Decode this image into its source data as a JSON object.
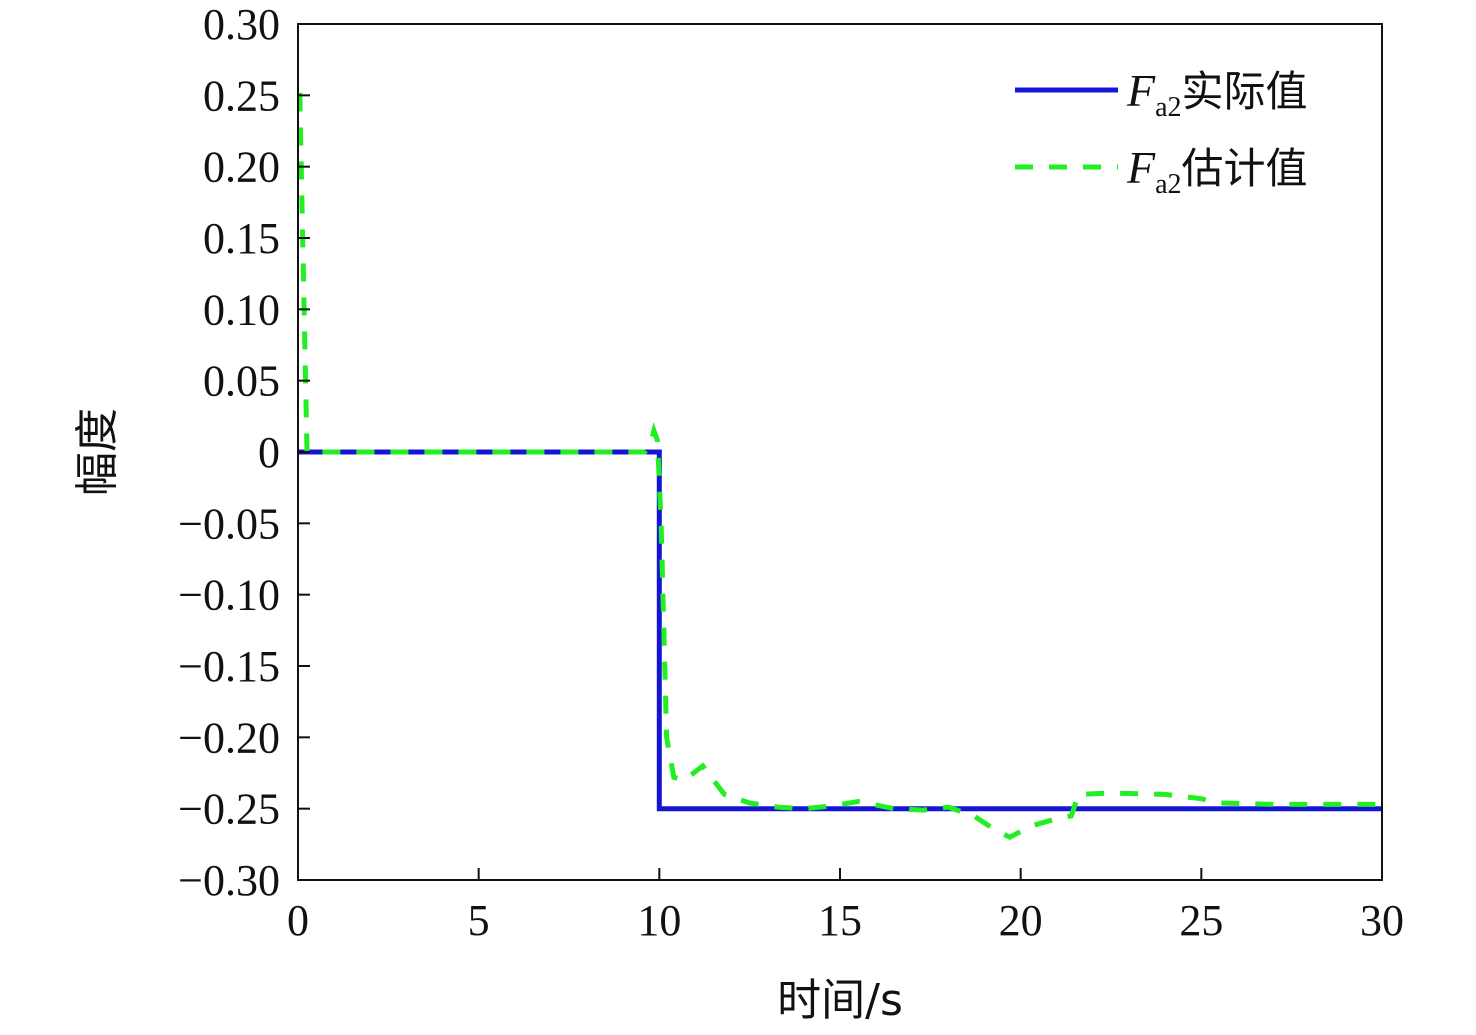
{
  "chart_data": {
    "type": "line",
    "title": "",
    "xlabel": "时间/s",
    "ylabel": "幅度",
    "xlim": [
      0,
      30
    ],
    "ylim": [
      -0.3,
      0.3
    ],
    "x_ticks": [
      "0",
      "5",
      "10",
      "15",
      "20",
      "25",
      "30"
    ],
    "y_ticks": [
      "0.30",
      "0.25",
      "0.20",
      "0.15",
      "0.10",
      "0.05",
      "0",
      "−0.05",
      "−0.10",
      "−0.15",
      "−0.20",
      "−0.25",
      "−0.30"
    ],
    "grid": false,
    "legend_position": "top-right",
    "series": [
      {
        "name": "Fa2实际值",
        "legend_symbol": "F",
        "legend_subscript": "a2",
        "legend_suffix": "实际值",
        "color": "#1515d6",
        "style": "solid",
        "x": [
          0,
          10,
          10,
          30
        ],
        "y": [
          0,
          0,
          -0.25,
          -0.25
        ]
      },
      {
        "name": "Fa2估计值",
        "legend_symbol": "F",
        "legend_subscript": "a2",
        "legend_suffix": "估计值",
        "color": "#22ee22",
        "style": "dashed",
        "x": [
          0,
          0.05,
          0.25,
          9.6,
          9.75,
          9.85,
          9.95,
          10.05,
          10.2,
          10.4,
          10.7,
          11.2,
          11.8,
          12.5,
          13.3,
          14,
          14.8,
          15.5,
          16.5,
          17.3,
          18,
          18.7,
          19.3,
          19.7,
          20.3,
          21,
          21.4,
          21.6,
          22.5,
          24,
          25,
          25.5,
          27,
          30
        ],
        "y": [
          0.25,
          0.25,
          0,
          0,
          0.005,
          0.015,
          0.008,
          -0.05,
          -0.2,
          -0.228,
          -0.23,
          -0.22,
          -0.24,
          -0.246,
          -0.249,
          -0.25,
          -0.248,
          -0.245,
          -0.25,
          -0.251,
          -0.249,
          -0.255,
          -0.265,
          -0.27,
          -0.262,
          -0.257,
          -0.255,
          -0.24,
          -0.239,
          -0.24,
          -0.243,
          -0.246,
          -0.247,
          -0.247
        ]
      }
    ]
  }
}
